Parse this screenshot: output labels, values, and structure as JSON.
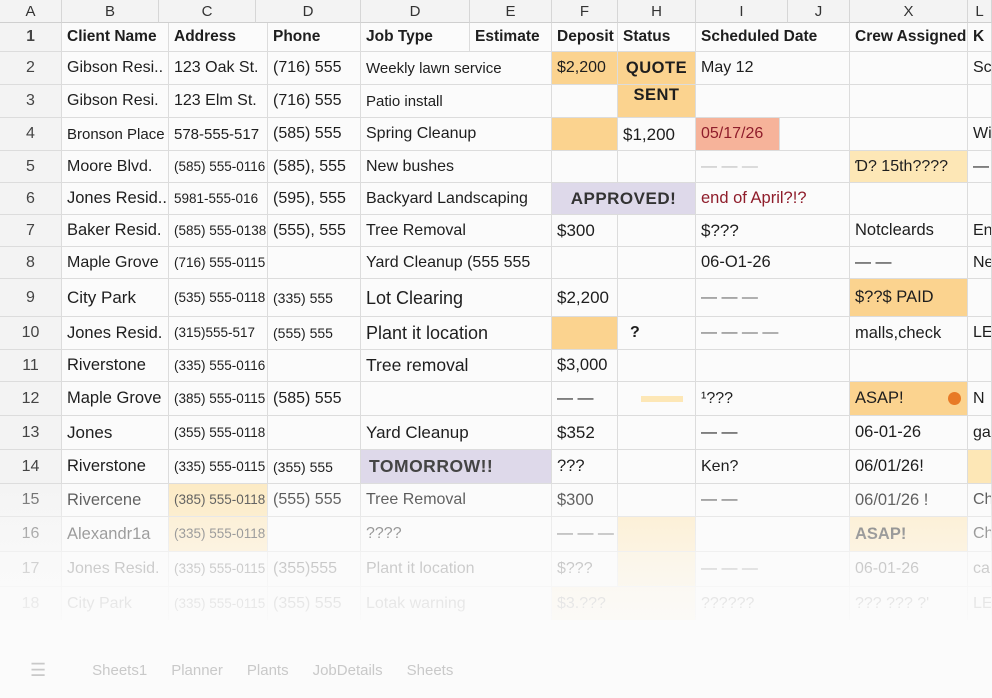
{
  "column_headers": [
    "A",
    "B",
    "C",
    "D",
    "D",
    "E",
    "F",
    "H",
    "I",
    "J",
    "X",
    "L"
  ],
  "header_row": {
    "num": "1",
    "client": "Client Name",
    "address": "Address",
    "phone": "Phone",
    "job": "Job Type",
    "estimate": "Estimate",
    "deposit": "Deposit",
    "status": "Status",
    "scheduled": "Scheduled Date",
    "crew": "Crew Assigned",
    "k": "K"
  },
  "rows": [
    {
      "num": "2",
      "client": "Gibson Resi..",
      "address": "123 Oak St.",
      "phone": "(716) 555",
      "job": "Weekly lawn service",
      "deposit": "$2,200",
      "status": "QUOTE",
      "date": "May 12",
      "crew": "",
      "k": "Sc"
    },
    {
      "num": "3",
      "client": "Gibson Resi.",
      "address": "123 Elm St.",
      "phone": "(716) 555",
      "job": "Patio install",
      "deposit": "",
      "status": "SENT",
      "date": "",
      "crew": "",
      "k": ""
    },
    {
      "num": "4",
      "client": "Bronson Place",
      "address": "578-555-517",
      "phone": "(585) 555",
      "job": "Spring Cleanup",
      "deposit": "",
      "status": "$1,200",
      "date": "05/17/26",
      "crew": "",
      "k": "Wi"
    },
    {
      "num": "5",
      "client": "Moore Blvd.",
      "address": "(585) 555-0116",
      "phone": "(585), 555",
      "job": "New bushes",
      "deposit": "",
      "status": "",
      "date": "— — —",
      "crew": "Ɗ? 15th????",
      "k": "—"
    },
    {
      "num": "6",
      "client": "Jones Resid..",
      "address": "5981-555-016",
      "phone": "(595), 555",
      "job": "Backyard Landscaping",
      "deposit": "APPROVED!",
      "status": "",
      "date": "end of April?!?",
      "crew": "",
      "k": ""
    },
    {
      "num": "7",
      "client": "Baker Resid.",
      "address": "(585) 555-0138",
      "phone": "(555), 555",
      "job": "Tree Removal",
      "deposit": "$300",
      "status": "",
      "date": "$???",
      "crew": "Notcleards",
      "k": "En"
    },
    {
      "num": "8",
      "client": "Maple Grove",
      "address": "(716) 555-0115",
      "phone": "",
      "job": "Yard Cleanup (555 555",
      "deposit": "",
      "status": "",
      "date": "06-O1-26",
      "crew": "— —",
      "k": "Ne"
    },
    {
      "num": "9",
      "client": "City Park",
      "address": "(535) 555-0118",
      "phone": "(335) 555",
      "job": "Lot Clearing",
      "deposit": "$2,200",
      "status": "",
      "date": "— — —",
      "crew": "$??$ PAID",
      "k": ""
    },
    {
      "num": "10",
      "client": "Jones Resid.",
      "address": "(315)555-517",
      "phone": "(555) 555",
      "job": "Plant it location",
      "deposit": "",
      "status": "?",
      "date": "— — — —",
      "crew": "malls,check",
      "k": "LE"
    },
    {
      "num": "11",
      "client": "Riverstone",
      "address": "(335) 555-0116",
      "phone": "",
      "job": "Tree removal",
      "deposit": "$3,000",
      "status": "",
      "date": "",
      "crew": "",
      "k": ""
    },
    {
      "num": "12",
      "client": "Maple Grove",
      "address": "(385) 555-0115",
      "phone": "(585) 555",
      "job": "",
      "deposit": "— —",
      "status": "",
      "date": "¹???",
      "crew": "ASAP!",
      "k": "N"
    },
    {
      "num": "13",
      "client": "Jones",
      "address": "(355) 555-0118",
      "phone": "",
      "job": "Yard Cleanup",
      "deposit": "$352",
      "status": "",
      "date": "— —",
      "crew": "06-01-26",
      "k": "ga"
    },
    {
      "num": "14",
      "client": "Riverstone",
      "address": "(335) 555-0115",
      "phone": "(355) 555",
      "job": "TOMORROW!!",
      "deposit": "???",
      "status": "",
      "date": "Ken?",
      "crew": "06/01/26!",
      "k": ""
    },
    {
      "num": "15",
      "client": "Rivercene",
      "address": "(385) 555-0118",
      "phone": "(555) 555",
      "job": "Tree Removal",
      "deposit": "$300",
      "status": "",
      "date": "— —",
      "crew": "06/01/26 !",
      "k": "Ch"
    },
    {
      "num": "16",
      "client": "Alexandr1a",
      "address": "(335) 555-0118",
      "phone": "",
      "job": "????",
      "deposit": "— — —",
      "status": "",
      "date": "",
      "crew": "ASAP!",
      "k": "Ch"
    },
    {
      "num": "17",
      "client": "Jones Resid.",
      "address": "(335) 555-0115",
      "phone": "(355)555",
      "job": "Plant it location",
      "deposit": "$???",
      "status": "",
      "date": "— — —",
      "crew": "06-01-26",
      "k": "ca"
    },
    {
      "num": "18",
      "client": "City Park",
      "address": "(335) 555-0115",
      "phone": "(355) 555",
      "job": "Lotak warning",
      "deposit": "$3.???",
      "status": "",
      "date": "??????",
      "crew": "??? ??? ?'",
      "k": "LE"
    }
  ],
  "sheet_tabs": [
    "Sheets1",
    "Planner",
    "Plants",
    "JobDetails",
    "Sheets"
  ],
  "colors": {
    "yellow": "#fde7b6",
    "amber": "#fbd38f",
    "salmon": "#f6b39a",
    "lavender": "#ded9ea",
    "orange_dot": "#e87a26"
  }
}
